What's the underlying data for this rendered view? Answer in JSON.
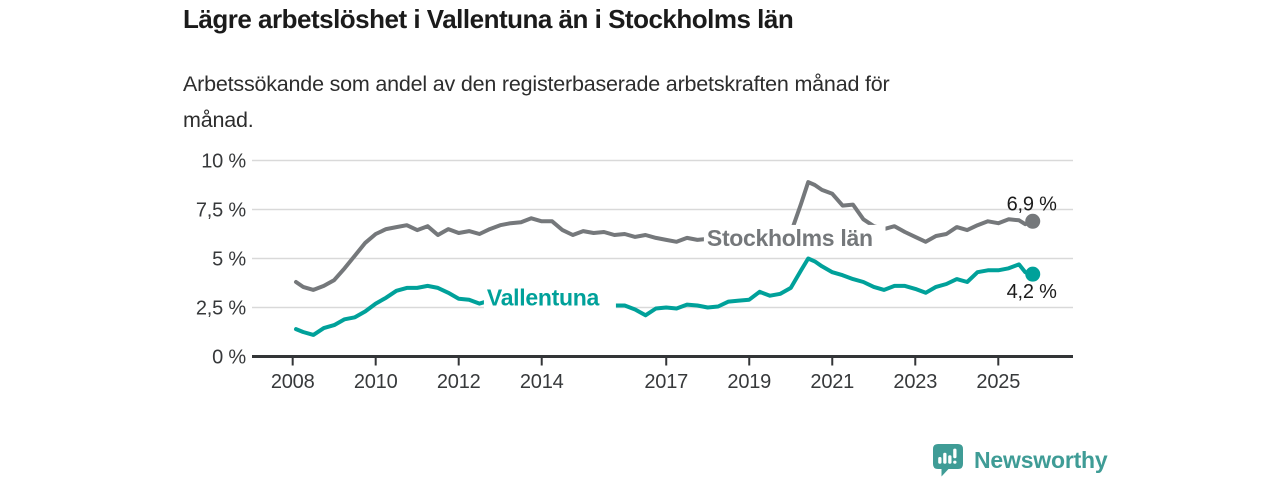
{
  "header": {
    "title": "Lägre arbetslöshet i Vallentuna än i Stockholms län",
    "subtitle_line1": "Arbetssökande som andel av den registerbaserade arbetskraften månad för",
    "subtitle_line2": "månad."
  },
  "footer": {
    "brand": "Newsworthy",
    "brand_color": "#3F9C96",
    "logo_icon": "speech-bubble-bar-chart-icon"
  },
  "colors": {
    "background": "#FFFFFF",
    "grid": "#D9D9D9",
    "axis": "#333537",
    "series_stockholm": "#75787B",
    "series_vallentuna": "#00A19A",
    "end_label_text": "#1C1C1C"
  },
  "chart_data": {
    "type": "line",
    "title": "Lägre arbetslöshet i Vallentuna än i Stockholms län",
    "xlabel": "",
    "ylabel": "",
    "ylim": [
      0,
      10
    ],
    "xlim": [
      2007.02,
      2026.8
    ],
    "grid": "horizontal",
    "legend_position": "inline-on-line",
    "y_ticks": [
      {
        "value": 0,
        "label": "0 %"
      },
      {
        "value": 2.5,
        "label": "2,5 %"
      },
      {
        "value": 5,
        "label": "5 %"
      },
      {
        "value": 7.5,
        "label": "7,5 %"
      },
      {
        "value": 10,
        "label": "10 %"
      }
    ],
    "x_ticks": [
      {
        "value": 2008,
        "label": "2008"
      },
      {
        "value": 2010,
        "label": "2010"
      },
      {
        "value": 2012,
        "label": "2012"
      },
      {
        "value": 2014,
        "label": "2014"
      },
      {
        "value": 2017,
        "label": "2017"
      },
      {
        "value": 2019,
        "label": "2019"
      },
      {
        "value": 2021,
        "label": "2021"
      },
      {
        "value": 2023,
        "label": "2023"
      },
      {
        "value": 2025,
        "label": "2025"
      }
    ],
    "x": [
      2008.08,
      2008.25,
      2008.5,
      2008.75,
      2009,
      2009.25,
      2009.5,
      2009.75,
      2010,
      2010.25,
      2010.5,
      2010.75,
      2011,
      2011.25,
      2011.5,
      2011.75,
      2012,
      2012.25,
      2012.5,
      2012.75,
      2013,
      2013.25,
      2013.5,
      2013.75,
      2014,
      2014.25,
      2014.5,
      2014.75,
      2015,
      2015.25,
      2015.5,
      2015.75,
      2016,
      2016.25,
      2016.5,
      2016.75,
      2017,
      2017.25,
      2017.5,
      2017.75,
      2018,
      2018.25,
      2018.5,
      2018.75,
      2019,
      2019.25,
      2019.5,
      2019.75,
      2020,
      2020.25,
      2020.42,
      2020.58,
      2020.75,
      2021,
      2021.25,
      2021.5,
      2021.75,
      2022,
      2022.25,
      2022.5,
      2022.75,
      2023,
      2023.25,
      2023.5,
      2023.75,
      2024,
      2024.25,
      2024.5,
      2024.75,
      2025,
      2025.25,
      2025.5,
      2025.65,
      2025.83
    ],
    "series": [
      {
        "name": "Stockholms län",
        "color": "#75787B",
        "end_label": "6,9 %",
        "end_label_position": "above",
        "inline_label": {
          "year": 2017.98,
          "value": 6.05
        },
        "values": [
          3.8,
          3.55,
          3.4,
          3.6,
          3.9,
          4.5,
          5.15,
          5.8,
          6.25,
          6.5,
          6.6,
          6.7,
          6.45,
          6.65,
          6.2,
          6.5,
          6.3,
          6.4,
          6.25,
          6.5,
          6.7,
          6.8,
          6.85,
          7.05,
          6.9,
          6.9,
          6.45,
          6.2,
          6.4,
          6.3,
          6.35,
          6.2,
          6.25,
          6.1,
          6.2,
          6.05,
          5.95,
          5.85,
          6.05,
          5.95,
          6.0,
          5.9,
          6.0,
          5.95,
          6.0,
          6.05,
          6.1,
          6.15,
          6.3,
          7.8,
          8.9,
          8.75,
          8.5,
          8.3,
          7.7,
          7.75,
          7.0,
          6.65,
          6.5,
          6.65,
          6.35,
          6.1,
          5.85,
          6.15,
          6.25,
          6.6,
          6.45,
          6.7,
          6.9,
          6.8,
          7.0,
          6.95,
          6.75,
          6.9
        ]
      },
      {
        "name": "Vallentuna",
        "color": "#00A19A",
        "end_label": "4,2 %",
        "end_label_position": "below",
        "inline_label": {
          "year": 2012.68,
          "value": 3.0
        },
        "values": [
          1.4,
          1.25,
          1.1,
          1.45,
          1.6,
          1.9,
          2.0,
          2.3,
          2.7,
          3.0,
          3.35,
          3.5,
          3.5,
          3.6,
          3.5,
          3.25,
          2.95,
          2.9,
          2.7,
          2.85,
          3.0,
          2.9,
          2.9,
          2.85,
          2.9,
          2.85,
          2.8,
          2.7,
          2.8,
          2.7,
          2.7,
          2.6,
          2.6,
          2.4,
          2.1,
          2.45,
          2.5,
          2.45,
          2.65,
          2.6,
          2.5,
          2.55,
          2.8,
          2.85,
          2.9,
          3.3,
          3.1,
          3.2,
          3.5,
          4.4,
          5.0,
          4.85,
          4.6,
          4.3,
          4.15,
          3.95,
          3.8,
          3.55,
          3.4,
          3.6,
          3.6,
          3.45,
          3.25,
          3.55,
          3.7,
          3.95,
          3.8,
          4.3,
          4.4,
          4.4,
          4.5,
          4.7,
          4.3,
          4.2
        ]
      }
    ]
  }
}
